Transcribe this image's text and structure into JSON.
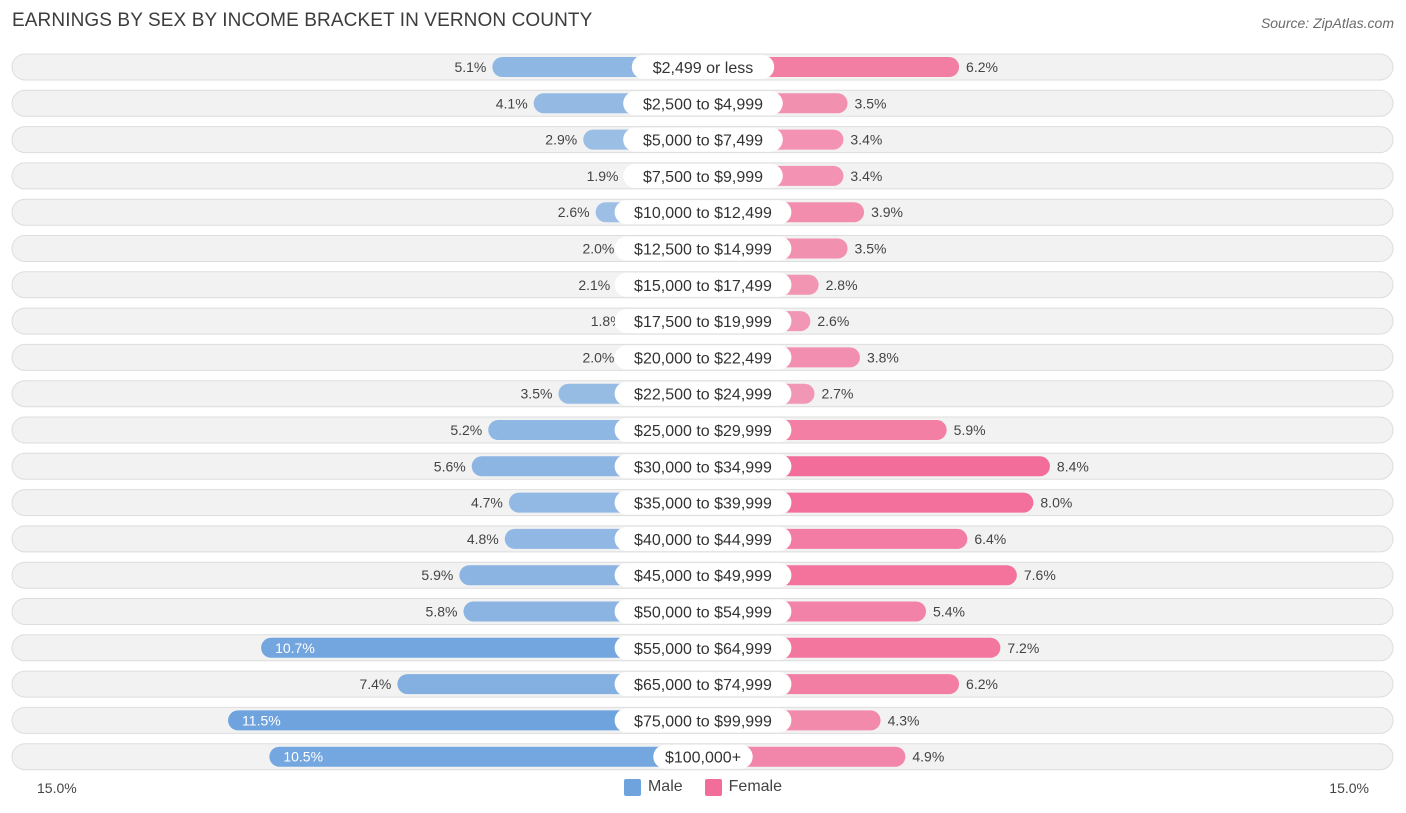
{
  "header": {
    "title": "EARNINGS BY SEX BY INCOME BRACKET IN VERNON COUNTY",
    "source": "Source: ZipAtlas.com"
  },
  "colors": {
    "male": "#6ea3de",
    "female": "#f26d99"
  },
  "chart_data": {
    "type": "bar",
    "orientation": "horizontal-diverging",
    "title": "EARNINGS BY SEX BY INCOME BRACKET IN VERNON COUNTY",
    "categories": [
      "$2,499 or less",
      "$2,500 to $4,999",
      "$5,000 to $7,499",
      "$7,500 to $9,999",
      "$10,000 to $12,499",
      "$12,500 to $14,999",
      "$15,000 to $17,499",
      "$17,500 to $19,999",
      "$20,000 to $22,499",
      "$22,500 to $24,999",
      "$25,000 to $29,999",
      "$30,000 to $34,999",
      "$35,000 to $39,999",
      "$40,000 to $44,999",
      "$45,000 to $49,999",
      "$50,000 to $54,999",
      "$55,000 to $64,999",
      "$65,000 to $74,999",
      "$75,000 to $99,999",
      "$100,000+"
    ],
    "series": [
      {
        "name": "Male",
        "values": [
          5.1,
          4.1,
          2.9,
          1.9,
          2.6,
          2.0,
          2.1,
          1.8,
          2.0,
          3.5,
          5.2,
          5.6,
          4.7,
          4.8,
          5.9,
          5.8,
          10.7,
          7.4,
          11.5,
          10.5
        ],
        "labels": [
          "5.1%",
          "4.1%",
          "2.9%",
          "1.9%",
          "2.6%",
          "2.0%",
          "2.1%",
          "1.8%",
          "2.0%",
          "3.5%",
          "5.2%",
          "5.6%",
          "4.7%",
          "4.8%",
          "5.9%",
          "5.8%",
          "10.7%",
          "7.4%",
          "11.5%",
          "10.5%"
        ]
      },
      {
        "name": "Female",
        "values": [
          6.2,
          3.5,
          3.4,
          3.4,
          3.9,
          3.5,
          2.8,
          2.6,
          3.8,
          2.7,
          5.9,
          8.4,
          8.0,
          6.4,
          7.6,
          5.4,
          7.2,
          6.2,
          4.3,
          4.9
        ],
        "labels": [
          "6.2%",
          "3.5%",
          "3.4%",
          "3.4%",
          "3.9%",
          "3.5%",
          "2.8%",
          "2.6%",
          "3.8%",
          "2.7%",
          "5.9%",
          "8.4%",
          "8.0%",
          "6.4%",
          "7.6%",
          "5.4%",
          "7.2%",
          "6.2%",
          "4.3%",
          "4.9%"
        ]
      }
    ],
    "axis_max": 15.0,
    "axis_left_label": "15.0%",
    "axis_right_label": "15.0%",
    "legend_position": "bottom-center"
  },
  "legend": {
    "male_label": "Male",
    "female_label": "Female"
  }
}
